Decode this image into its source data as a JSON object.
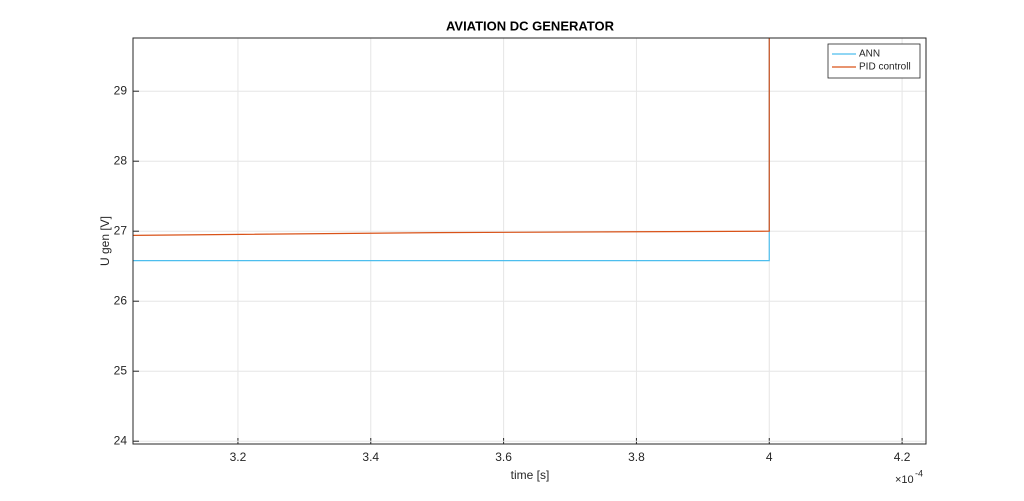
{
  "chart_data": {
    "type": "line",
    "title": "AVIATION DC GENERATOR",
    "x_label": "time [s]",
    "y_label": "U gen [V]",
    "x_exponent_base": "×10",
    "x_exponent": "-4",
    "xlim": [
      3.042,
      4.236
    ],
    "ylim": [
      23.96,
      29.76
    ],
    "xticks": [
      3.2,
      3.4,
      3.6,
      3.8,
      4,
      4.2
    ],
    "yticks": [
      24,
      25,
      26,
      27,
      28,
      29
    ],
    "grid": true,
    "legend_position": "upper-right",
    "series": [
      {
        "name": "ANN",
        "color": "#4dbeee",
        "x": [
          3.042,
          4.0,
          4.0
        ],
        "values": [
          26.58,
          26.58,
          29.76
        ]
      },
      {
        "name": "PID controll",
        "color": "#d95319",
        "x": [
          3.042,
          3.5,
          4.0,
          4.0
        ],
        "values": [
          26.94,
          26.98,
          27.0,
          29.76
        ]
      }
    ]
  }
}
